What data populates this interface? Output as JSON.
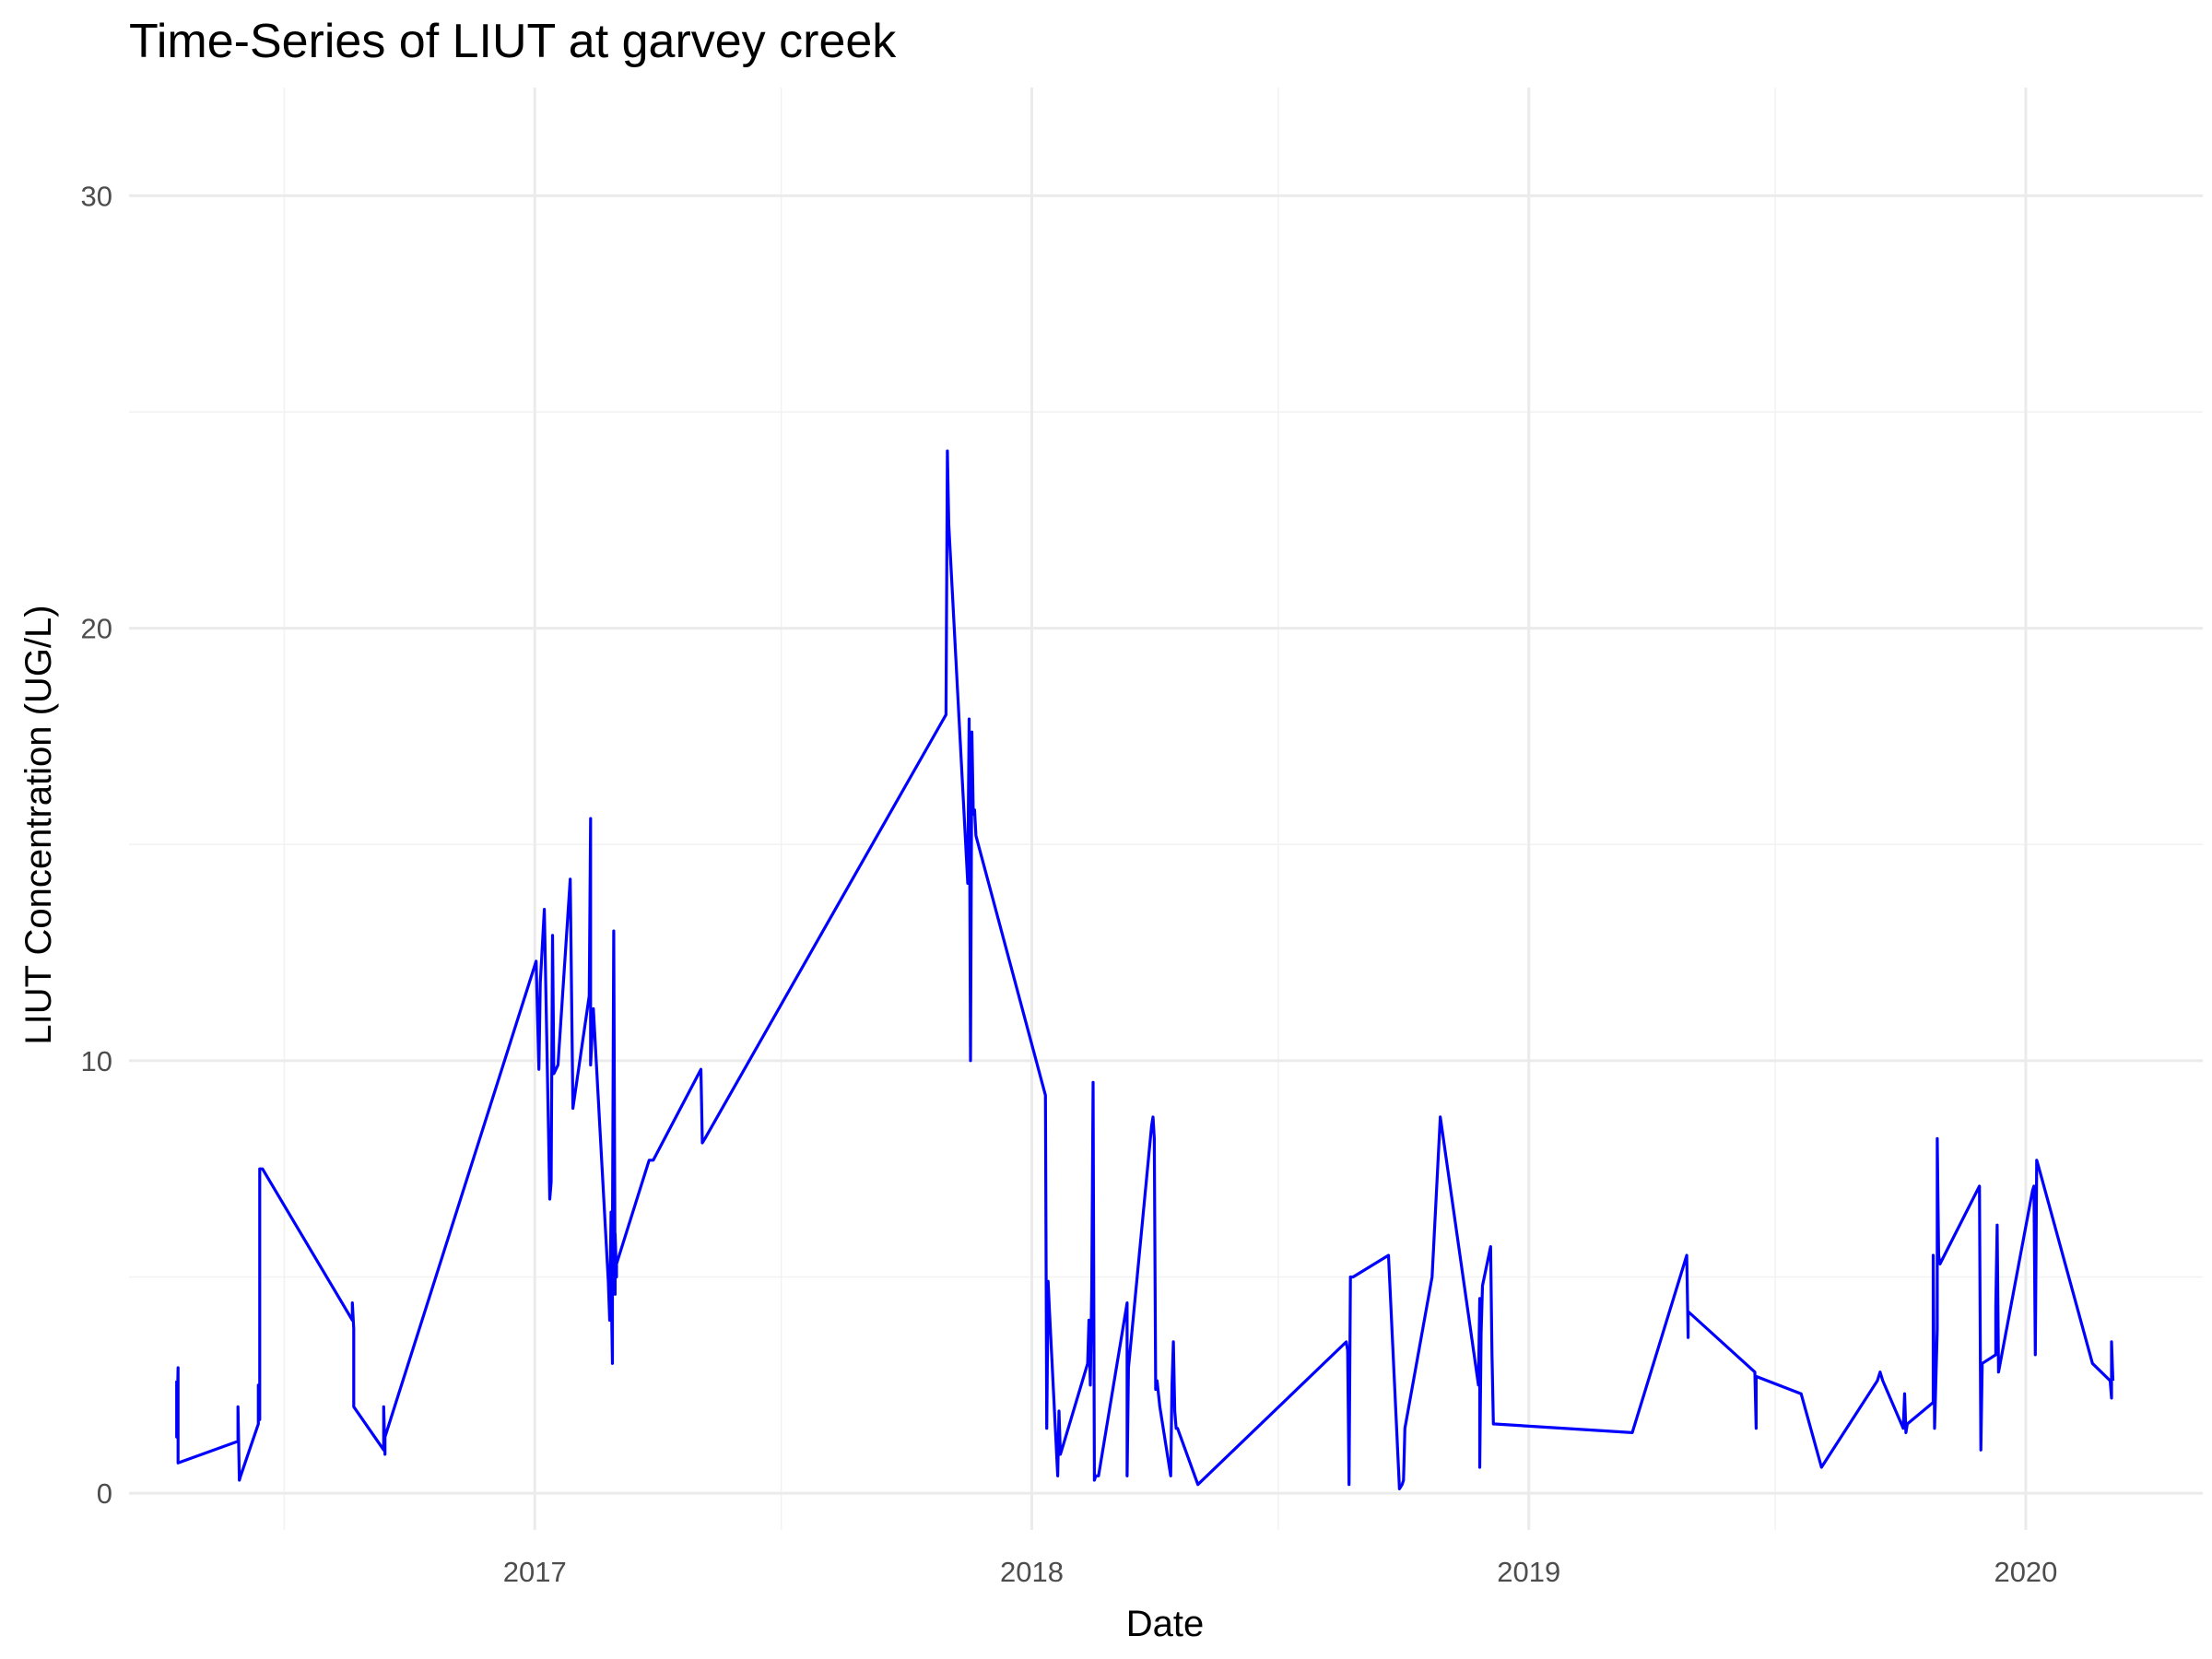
{
  "chart_data": {
    "type": "line",
    "title": "Time-Series of LIUT at garvey creek",
    "xlabel": "Date",
    "ylabel": "LIUT Concentration (UG/L)",
    "x_type": "date",
    "xlim": [
      "2016-03-09",
      "2020-05-10"
    ],
    "ylim": [
      -0.85,
      32.5
    ],
    "x_ticks": [
      {
        "label": "2017",
        "value": "2017-01-01"
      },
      {
        "label": "2018",
        "value": "2018-01-01"
      },
      {
        "label": "2019",
        "value": "2019-01-01"
      },
      {
        "label": "2020",
        "value": "2020-01-01"
      }
    ],
    "x_minor_ticks": [
      "2016-07-01",
      "2017-07-01",
      "2018-07-01",
      "2019-07-01"
    ],
    "y_ticks": [
      {
        "label": "0",
        "value": 0
      },
      {
        "label": "10",
        "value": 10
      },
      {
        "label": "20",
        "value": 20
      },
      {
        "label": "30",
        "value": 30
      }
    ],
    "y_minor_ticks": [
      5,
      15,
      25
    ],
    "grid": true,
    "legend": "none",
    "color": "#0000ff",
    "series": [
      {
        "x": [
          "2016-04-13",
          "2016-04-13",
          "2016-04-14",
          "2016-04-14",
          "2016-05-28",
          "2016-05-28",
          "2016-05-29",
          "2016-05-30",
          "2016-06-12",
          "2016-06-12",
          "2016-06-13",
          "2016-06-13",
          "2016-06-15",
          "2016-08-20",
          "2016-08-20",
          "2016-08-21",
          "2016-08-21",
          "2016-09-12",
          "2016-09-12",
          "2016-09-13",
          "2016-09-13",
          "2017-01-02",
          "2017-01-04",
          "2017-01-05",
          "2017-01-08",
          "2017-01-12",
          "2017-01-13",
          "2017-01-14",
          "2017-01-15",
          "2017-01-18",
          "2017-01-27",
          "2017-01-29",
          "2017-02-10",
          "2017-02-11",
          "2017-02-11",
          "2017-02-13",
          "2017-02-24",
          "2017-02-25",
          "2017-02-26",
          "2017-02-26",
          "2017-02-27",
          "2017-02-27",
          "2017-02-28",
          "2017-03-01",
          "2017-03-01",
          "2017-03-02",
          "2017-03-02",
          "2017-03-03",
          "2017-03-26",
          "2017-03-29",
          "2017-05-03",
          "2017-05-04",
          "2017-05-06",
          "2017-10-30",
          "2017-10-31",
          "2017-11-01",
          "2017-11-15",
          "2017-11-16",
          "2017-11-17",
          "2017-11-18",
          "2017-11-19",
          "2017-11-20",
          "2017-11-21",
          "2018-01-11",
          "2018-01-12",
          "2018-01-13",
          "2018-01-14",
          "2018-01-20",
          "2018-01-21",
          "2018-01-22",
          "2018-01-23",
          "2018-02-11",
          "2018-02-12",
          "2018-02-13",
          "2018-02-14",
          "2018-02-15",
          "2018-02-16",
          "2018-02-17",
          "2018-02-18",
          "2018-02-19",
          "2018-03-12",
          "2018-03-12",
          "2018-03-13",
          "2018-03-30",
          "2018-03-31",
          "2018-04-01",
          "2018-04-02",
          "2018-04-03",
          "2018-04-04",
          "2018-04-05",
          "2018-04-13",
          "2018-04-14",
          "2018-04-15",
          "2018-04-16",
          "2018-04-17",
          "2018-04-18",
          "2018-05-03",
          "2018-08-20",
          "2018-08-21",
          "2018-08-22",
          "2018-08-23",
          "2018-08-25",
          "2018-09-20",
          "2018-09-28",
          "2018-09-30",
          "2018-10-01",
          "2018-10-02",
          "2018-10-22",
          "2018-10-28",
          "2018-11-25",
          "2018-11-26",
          "2018-11-26",
          "2018-11-27",
          "2018-11-28",
          "2018-12-04",
          "2018-12-05",
          "2018-12-06",
          "2018-12-07",
          "2019-03-18",
          "2019-04-27",
          "2019-04-28",
          "2019-04-28",
          "2019-06-16",
          "2019-06-17",
          "2019-06-17",
          "2019-07-20",
          "2019-08-04",
          "2019-09-14",
          "2019-09-16",
          "2019-09-18",
          "2019-10-03",
          "2019-10-04",
          "2019-10-05",
          "2019-10-06",
          "2019-10-25",
          "2019-10-25",
          "2019-10-26",
          "2019-10-28",
          "2019-10-28",
          "2019-10-29",
          "2019-10-30",
          "2019-11-28",
          "2019-11-29",
          "2019-11-30",
          "2019-12-10",
          "2019-12-10",
          "2019-12-11",
          "2019-12-12",
          "2020-01-06",
          "2020-01-07",
          "2020-01-08",
          "2020-01-09",
          "2020-01-10",
          "2020-02-19",
          "2020-03-03",
          "2020-03-04",
          "2020-03-04",
          "2020-03-05"
        ],
        "y": [
          2.6,
          1.3,
          2.9,
          0.7,
          1.2,
          2.0,
          0.3,
          0.4,
          1.6,
          2.5,
          1.7,
          7.5,
          7.5,
          4.0,
          4.4,
          3.8,
          2.0,
          1.0,
          2.0,
          0.9,
          1.3,
          12.3,
          9.8,
          11.8,
          13.5,
          6.8,
          7.2,
          12.9,
          9.7,
          9.9,
          14.2,
          8.9,
          11.5,
          15.6,
          9.9,
          11.2,
          4.9,
          4.0,
          6.5,
          5.0,
          3.0,
          6.0,
          13.0,
          4.6,
          6.0,
          5.0,
          5.3,
          5.4,
          7.7,
          7.7,
          9.8,
          8.1,
          8.2,
          18.0,
          24.1,
          22.4,
          14.1,
          17.9,
          10.0,
          17.6,
          15.7,
          15.8,
          15.2,
          9.2,
          1.5,
          4.9,
          4.2,
          0.4,
          1.9,
          0.9,
          1.0,
          3.0,
          4.0,
          2.5,
          4.7,
          9.5,
          0.3,
          0.4,
          0.4,
          0.4,
          4.4,
          0.4,
          2.9,
          8.5,
          8.7,
          8.2,
          2.4,
          2.6,
          2.3,
          2.0,
          0.4,
          2.5,
          3.5,
          1.9,
          1.5,
          1.5,
          0.2,
          3.5,
          3.3,
          0.2,
          5.0,
          5.0,
          5.5,
          0.1,
          0.2,
          0.3,
          1.5,
          5.0,
          8.7,
          2.5,
          4.5,
          0.6,
          3.7,
          4.8,
          5.7,
          3.2,
          1.6,
          1.6,
          1.4,
          5.5,
          3.6,
          4.2,
          2.8,
          1.5,
          2.7,
          2.3,
          0.6,
          2.6,
          2.8,
          2.6,
          1.5,
          2.3,
          1.4,
          1.6,
          2.1,
          5.5,
          1.5,
          3.8,
          8.2,
          5.5,
          5.3,
          7.1,
          1.0,
          3.0,
          3.2,
          4.3,
          6.2,
          2.8,
          7.0,
          7.1,
          3.2,
          7.7,
          7.6,
          3.0,
          2.6,
          2.2,
          3.5,
          2.6
        ]
      }
    ]
  }
}
